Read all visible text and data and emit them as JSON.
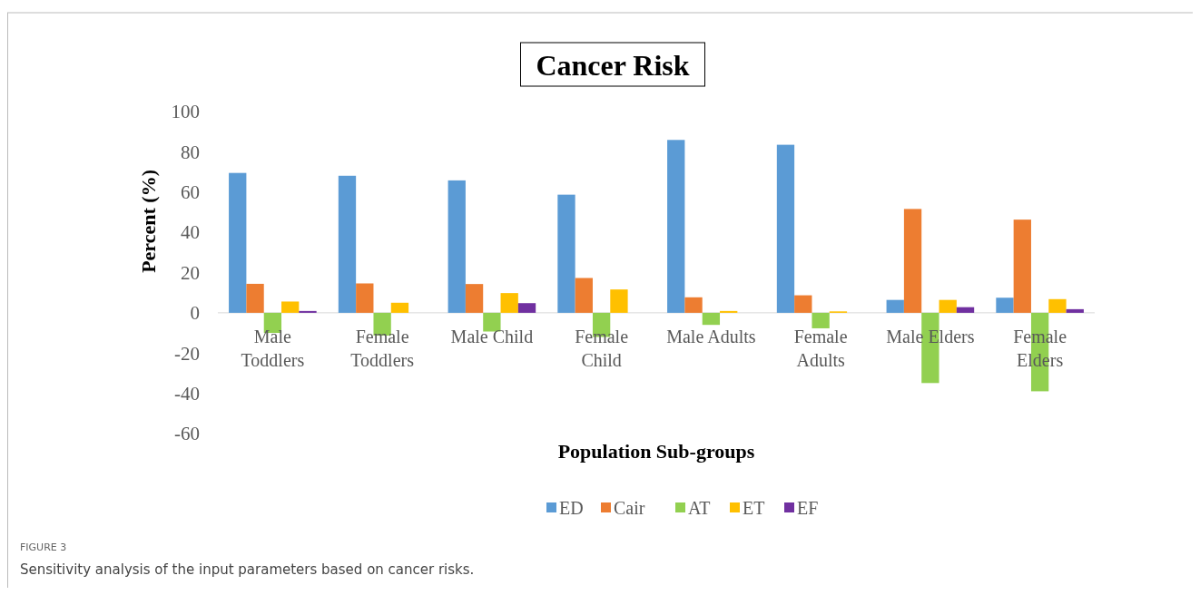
{
  "chart_data": {
    "type": "bar",
    "title": "Cancer Risk",
    "xlabel": "Population Sub-groups",
    "ylabel": "Percent (%)",
    "categories": [
      "Male Toddlers",
      "Female Toddlers",
      "Male Child",
      "Female Child",
      "Male Adults",
      "Female Adults",
      "Male Elders",
      "Female Elders"
    ],
    "series": [
      {
        "name": "ED",
        "color": "#5b9bd5",
        "values": [
          69.5,
          68.1,
          65.8,
          58.7,
          85.9,
          83.5,
          6.4,
          7.5
        ]
      },
      {
        "name": "Cair",
        "color": "#ed7d31",
        "values": [
          14.4,
          14.6,
          14.3,
          17.3,
          7.7,
          8.7,
          51.6,
          46.3
        ]
      },
      {
        "name": "AT",
        "color": "#92d050",
        "values": [
          -10,
          -11.3,
          -9.3,
          -12,
          -6,
          -7.7,
          -34.9,
          -39
        ]
      },
      {
        "name": "ET",
        "color": "#ffc000",
        "values": [
          5.6,
          5,
          9.8,
          11.6,
          0.9,
          0.7,
          6.4,
          6.8
        ]
      },
      {
        "name": "EF",
        "color": "#7030a0",
        "values": [
          0.9,
          0,
          4.8,
          0,
          0,
          0,
          2.8,
          1.8
        ]
      }
    ],
    "ylim": [
      -60,
      100
    ],
    "yticks": [
      -60,
      -40,
      -20,
      0,
      20,
      40,
      60,
      80,
      100
    ],
    "grid": false,
    "legend": "bottom",
    "annotations": [
      "FIGURE 3",
      "Sensitivity analysis of the input parameters based on cancer risks."
    ]
  }
}
